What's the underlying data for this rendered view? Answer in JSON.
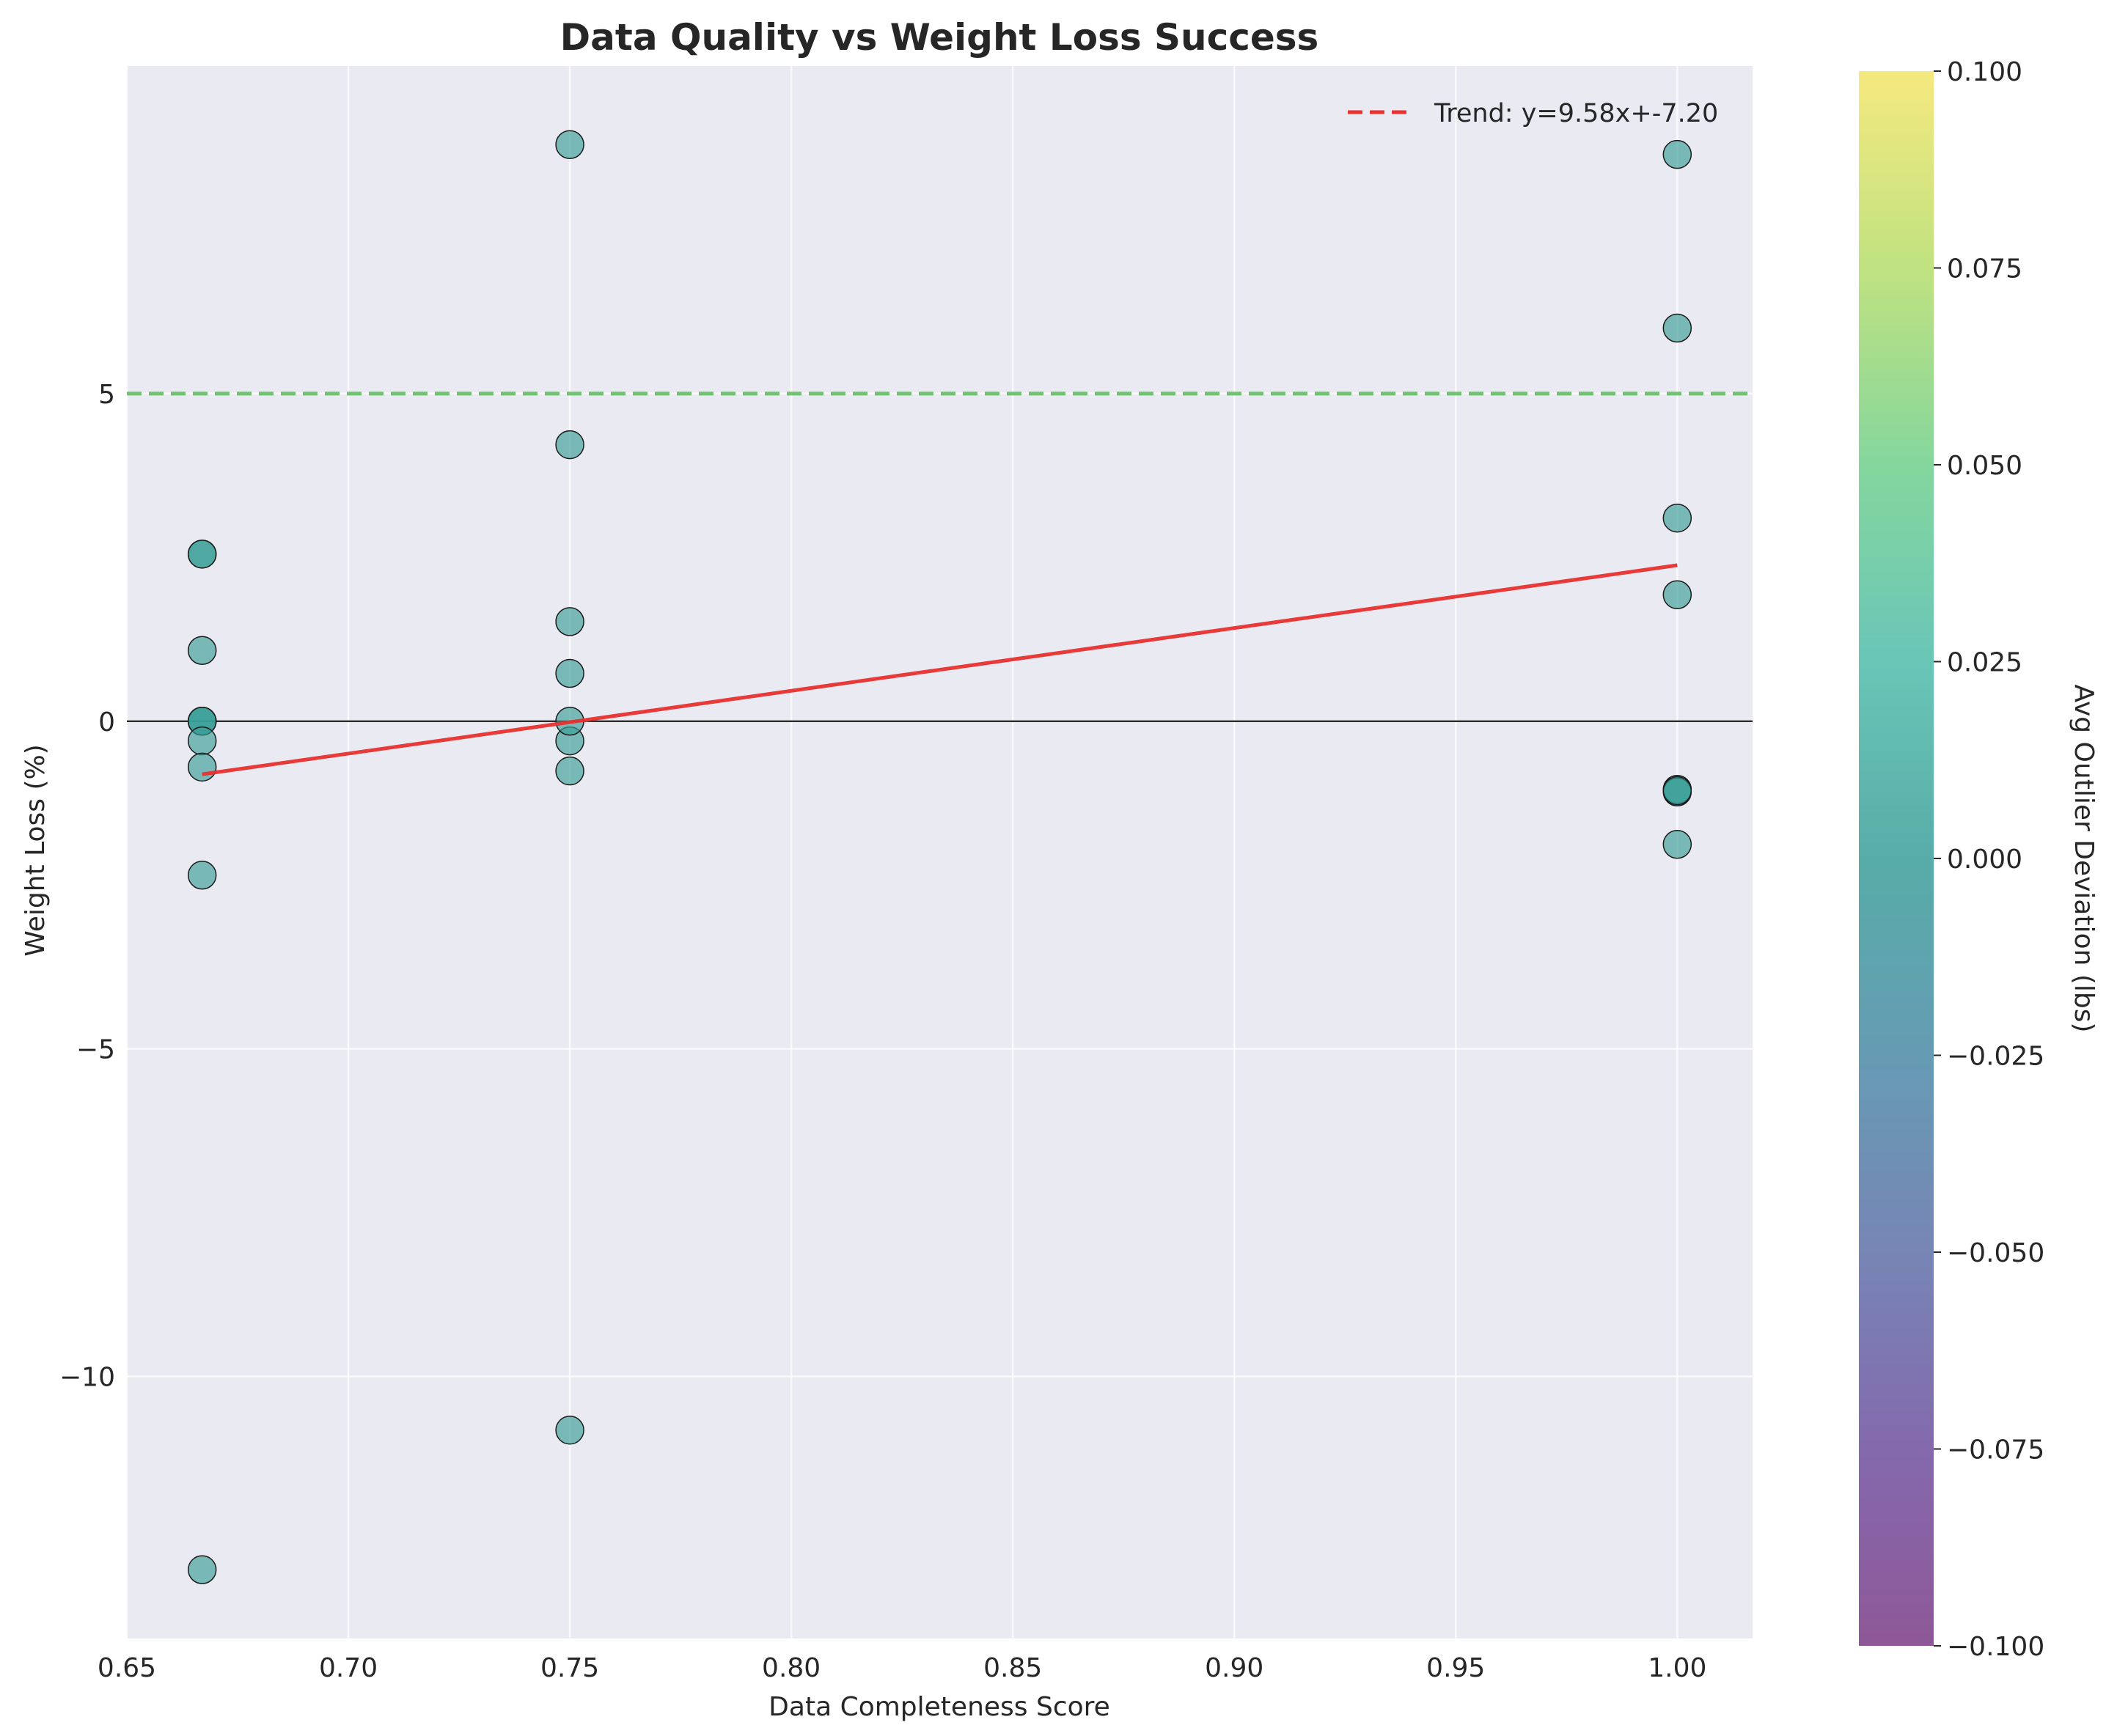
{
  "chart_data": {
    "type": "scatter",
    "title": "Data Quality vs Weight Loss Success",
    "xlabel": "Data Completeness Score",
    "ylabel": "Weight Loss (%)",
    "xlim": [
      0.65,
      1.017
    ],
    "ylim": [
      -14.0,
      10.0
    ],
    "x_ticks": [
      0.65,
      0.7,
      0.75,
      0.8,
      0.85,
      0.9,
      0.95,
      1.0
    ],
    "x_tick_labels": [
      "0.65",
      "0.70",
      "0.75",
      "0.80",
      "0.85",
      "0.90",
      "0.95",
      "1.00"
    ],
    "y_ticks": [
      -10,
      -5,
      0,
      5
    ],
    "y_tick_labels": [
      "−10",
      "−5",
      "0",
      "5"
    ],
    "grid": true,
    "background_color": "#eaeaf2",
    "points": {
      "color": "#3a9e98",
      "edge_color": "#1a1a1a",
      "x": [
        0.667,
        0.667,
        0.667,
        0.667,
        0.667,
        0.667,
        0.667,
        0.667,
        0.667,
        0.667,
        0.75,
        0.75,
        0.75,
        0.75,
        0.75,
        0.75,
        0.75,
        0.75,
        1.0,
        1.0,
        1.0,
        1.0,
        1.0,
        1.0,
        1.0,
        1.0
      ],
      "y": [
        2.55,
        2.55,
        1.08,
        0.0,
        0.0,
        0.0,
        -0.3,
        -0.7,
        -2.35,
        -12.95,
        8.8,
        4.22,
        1.52,
        0.73,
        -0.3,
        -0.76,
        -10.82,
        0.0,
        8.65,
        6.0,
        3.1,
        1.93,
        -1.04,
        -1.08,
        -1.88,
        -1.06
      ]
    },
    "trend": {
      "label": "Trend: y=9.58x+-7.20",
      "slope": 9.58,
      "intercept": -7.2,
      "x_range": [
        0.667,
        1.0
      ],
      "color": "#e8302e"
    },
    "target_line": {
      "y": 5,
      "color": "#5cb85c"
    },
    "zero_line": {
      "y": 0,
      "color": "#000000"
    },
    "legend": {
      "position": "top-right",
      "entries": [
        "Trend: y=9.58x+-7.20"
      ]
    },
    "colorbar": {
      "label": "Avg Outlier Deviation (lbs)",
      "range": [
        -0.1,
        0.1
      ],
      "ticks": [
        0.1,
        0.075,
        0.05,
        0.025,
        0.0,
        -0.025,
        -0.05,
        -0.075,
        -0.1
      ],
      "tick_labels": [
        "0.100",
        "0.075",
        "0.050",
        "0.025",
        "0.000",
        "−0.025",
        "−0.050",
        "−0.075",
        "−0.100"
      ],
      "colors": [
        "#f3e568",
        "#b5dd6a",
        "#6fcf8c",
        "#4fbcaa",
        "#3a9e98",
        "#4a8aa6",
        "#5f70a8",
        "#6e4f9e",
        "#7a3a85"
      ]
    }
  }
}
